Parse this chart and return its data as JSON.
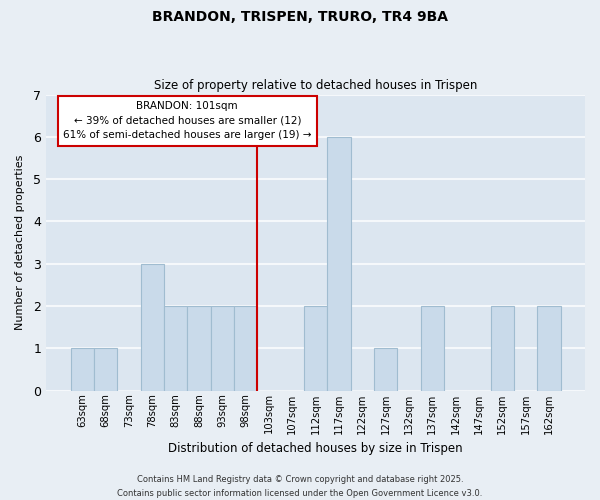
{
  "title": "BRANDON, TRISPEN, TRURO, TR4 9BA",
  "subtitle": "Size of property relative to detached houses in Trispen",
  "xlabel": "Distribution of detached houses by size in Trispen",
  "ylabel": "Number of detached properties",
  "categories": [
    "63sqm",
    "68sqm",
    "73sqm",
    "78sqm",
    "83sqm",
    "88sqm",
    "93sqm",
    "98sqm",
    "103sqm",
    "107sqm",
    "112sqm",
    "117sqm",
    "122sqm",
    "127sqm",
    "132sqm",
    "137sqm",
    "142sqm",
    "147sqm",
    "152sqm",
    "157sqm",
    "162sqm"
  ],
  "bar_values": [
    1,
    1,
    0,
    3,
    2,
    2,
    2,
    2,
    0,
    0,
    2,
    6,
    0,
    1,
    0,
    2,
    0,
    0,
    2,
    0,
    2
  ],
  "bar_color": "#c9daea",
  "bar_edge_color": "#a0bcd0",
  "ylim": [
    0,
    7
  ],
  "yticks": [
    0,
    1,
    2,
    3,
    4,
    5,
    6,
    7
  ],
  "vline_color": "#cc0000",
  "annotation_title": "BRANDON: 101sqm",
  "annotation_line1": "← 39% of detached houses are smaller (12)",
  "annotation_line2": "61% of semi-detached houses are larger (19) →",
  "annotation_box_edge": "#cc0000",
  "background_color": "#e8eef4",
  "plot_bg_color": "#dce6f0",
  "grid_color": "#f5f8fb",
  "footer_line1": "Contains HM Land Registry data © Crown copyright and database right 2025.",
  "footer_line2": "Contains public sector information licensed under the Open Government Licence v3.0."
}
